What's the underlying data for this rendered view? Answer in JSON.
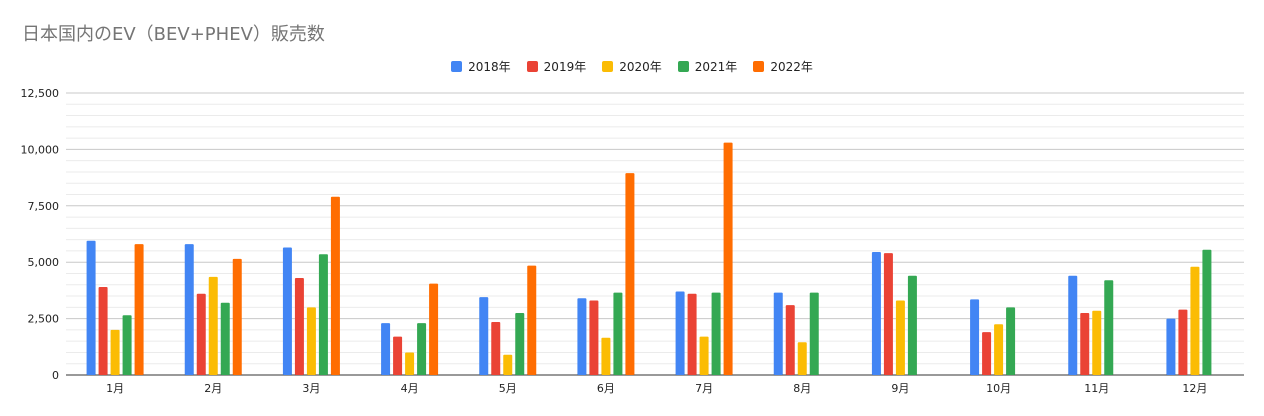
{
  "chart_data": {
    "type": "bar",
    "title": "日本国内のEV（BEV+PHEV）販売数",
    "xlabel": "",
    "ylabel": "",
    "ylim": [
      0,
      12500
    ],
    "yticks": [
      0,
      2500,
      5000,
      7500,
      10000,
      12500
    ],
    "ytick_labels": [
      "0",
      "2,500",
      "5,000",
      "7,500",
      "10,000",
      "12,500"
    ],
    "grid": true,
    "legend_position": "top",
    "categories": [
      "1月",
      "2月",
      "3月",
      "4月",
      "5月",
      "6月",
      "7月",
      "8月",
      "9月",
      "10月",
      "11月",
      "12月"
    ],
    "series": [
      {
        "name": "2018年",
        "color": "#4285f4",
        "values": [
          5950,
          5800,
          5650,
          2300,
          3450,
          3400,
          3700,
          3650,
          5450,
          3350,
          4400,
          2500
        ]
      },
      {
        "name": "2019年",
        "color": "#ea4335",
        "values": [
          3900,
          3600,
          4300,
          1700,
          2350,
          3300,
          3600,
          3100,
          5400,
          1900,
          2750,
          2900
        ]
      },
      {
        "name": "2020年",
        "color": "#fbbc04",
        "values": [
          2000,
          4350,
          3000,
          1000,
          900,
          1650,
          1700,
          1450,
          3300,
          2250,
          2850,
          4800
        ]
      },
      {
        "name": "2021年",
        "color": "#34a853",
        "values": [
          2650,
          3200,
          5350,
          2300,
          2750,
          3650,
          3650,
          3650,
          4400,
          3000,
          4200,
          5550
        ]
      },
      {
        "name": "2022年",
        "color": "#ff6d01",
        "values": [
          5800,
          5150,
          7900,
          4050,
          4850,
          8950,
          10300,
          null,
          null,
          null,
          null,
          null
        ]
      }
    ]
  }
}
